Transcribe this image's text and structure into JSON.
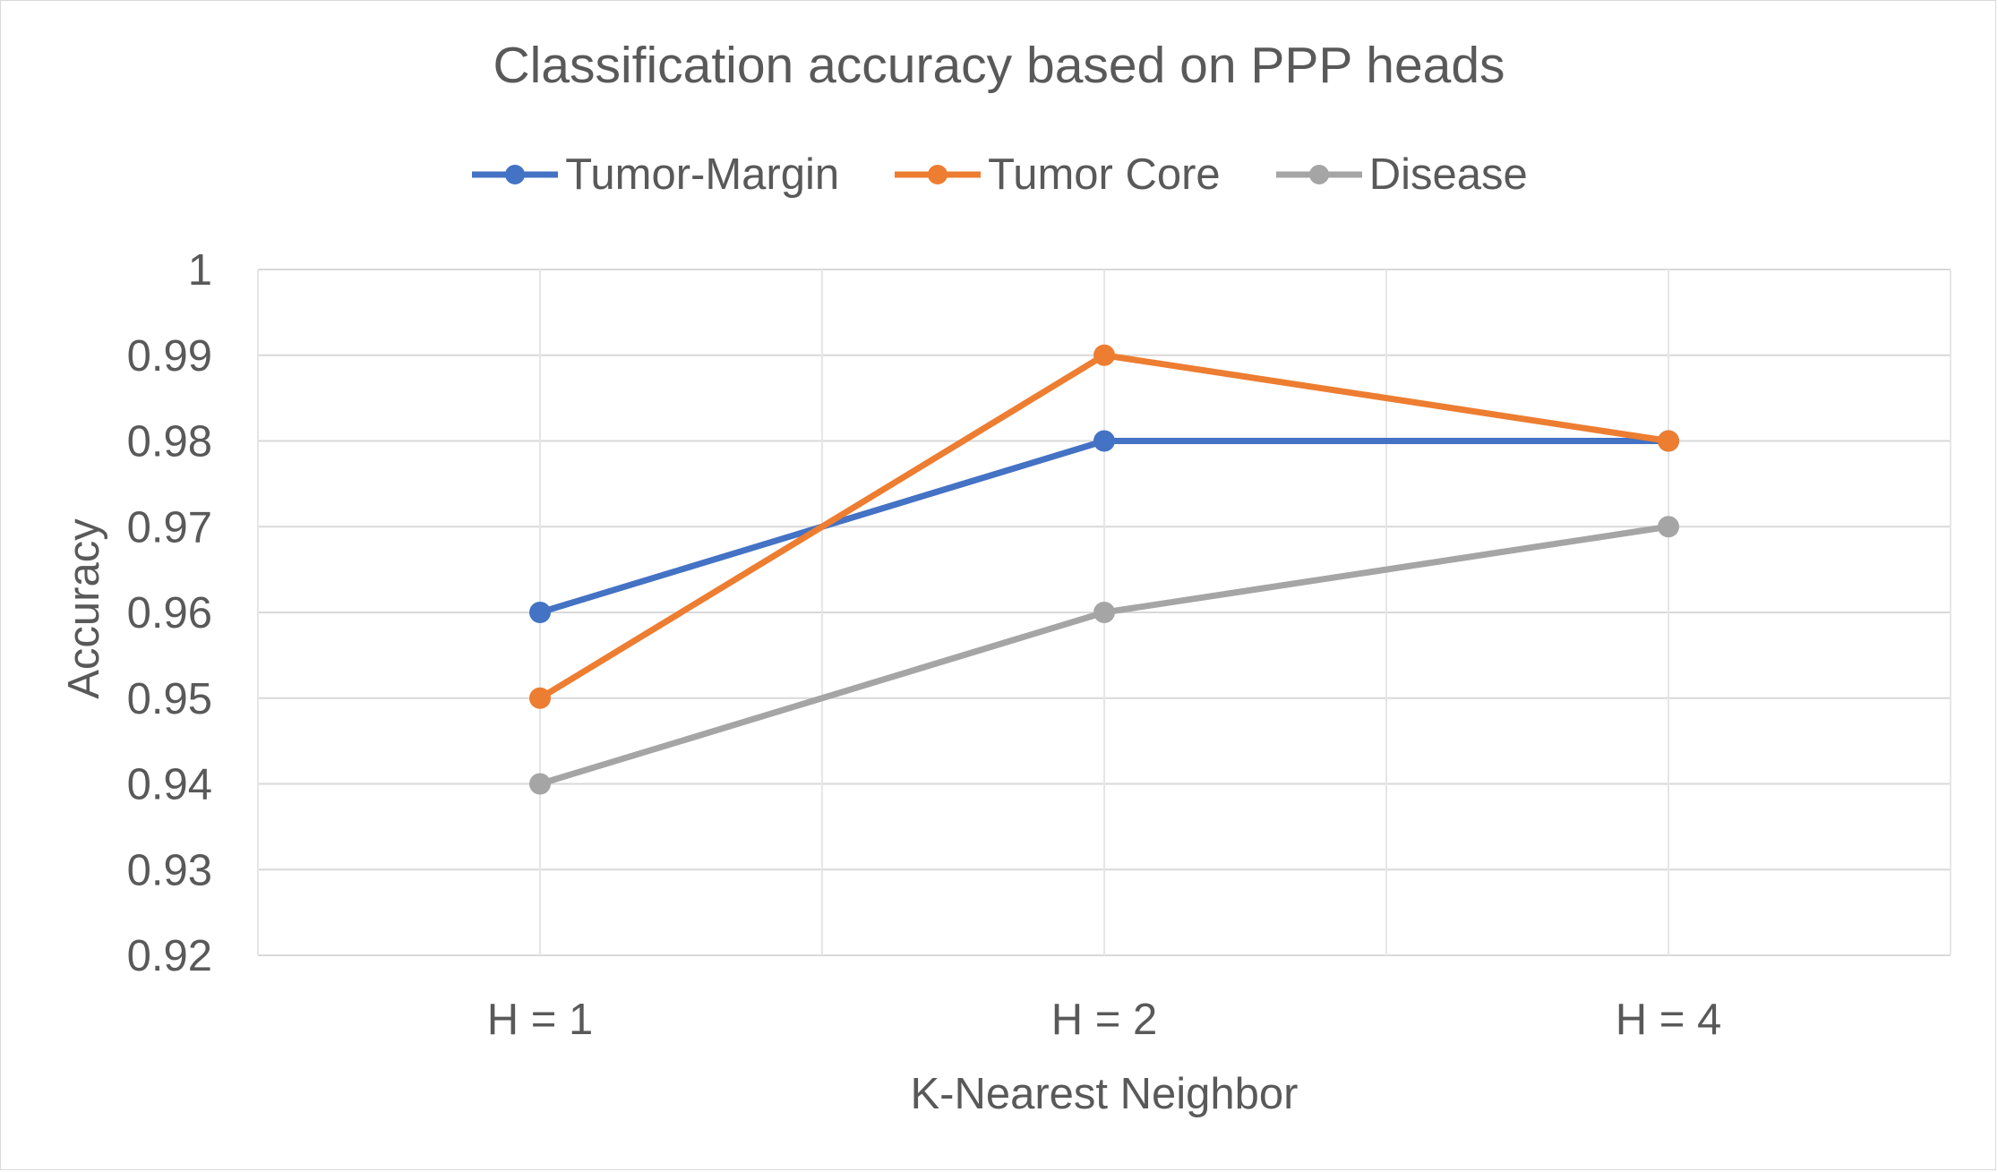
{
  "chart_data": {
    "type": "line",
    "title": "Classification accuracy based on PPP heads",
    "xlabel": "K-Nearest Neighbor",
    "ylabel": "Accuracy",
    "categories": [
      "H = 1",
      "H = 2",
      "H = 4"
    ],
    "ylim": [
      0.92,
      1
    ],
    "yticks": [
      0.92,
      0.93,
      0.94,
      0.95,
      0.96,
      0.97,
      0.98,
      0.99,
      1
    ],
    "ytick_labels": [
      "0.92",
      "0.93",
      "0.94",
      "0.95",
      "0.96",
      "0.97",
      "0.98",
      "0.99",
      "1"
    ],
    "grid": true,
    "legend_position": "top",
    "series": [
      {
        "name": "Tumor-Margin",
        "values": [
          0.96,
          0.98,
          0.98
        ],
        "color": "#4472c4"
      },
      {
        "name": "Tumor Core",
        "values": [
          0.95,
          0.99,
          0.98
        ],
        "color": "#ed7d31"
      },
      {
        "name": "Disease",
        "values": [
          0.94,
          0.96,
          0.97
        ],
        "color": "#a5a5a5"
      }
    ]
  }
}
